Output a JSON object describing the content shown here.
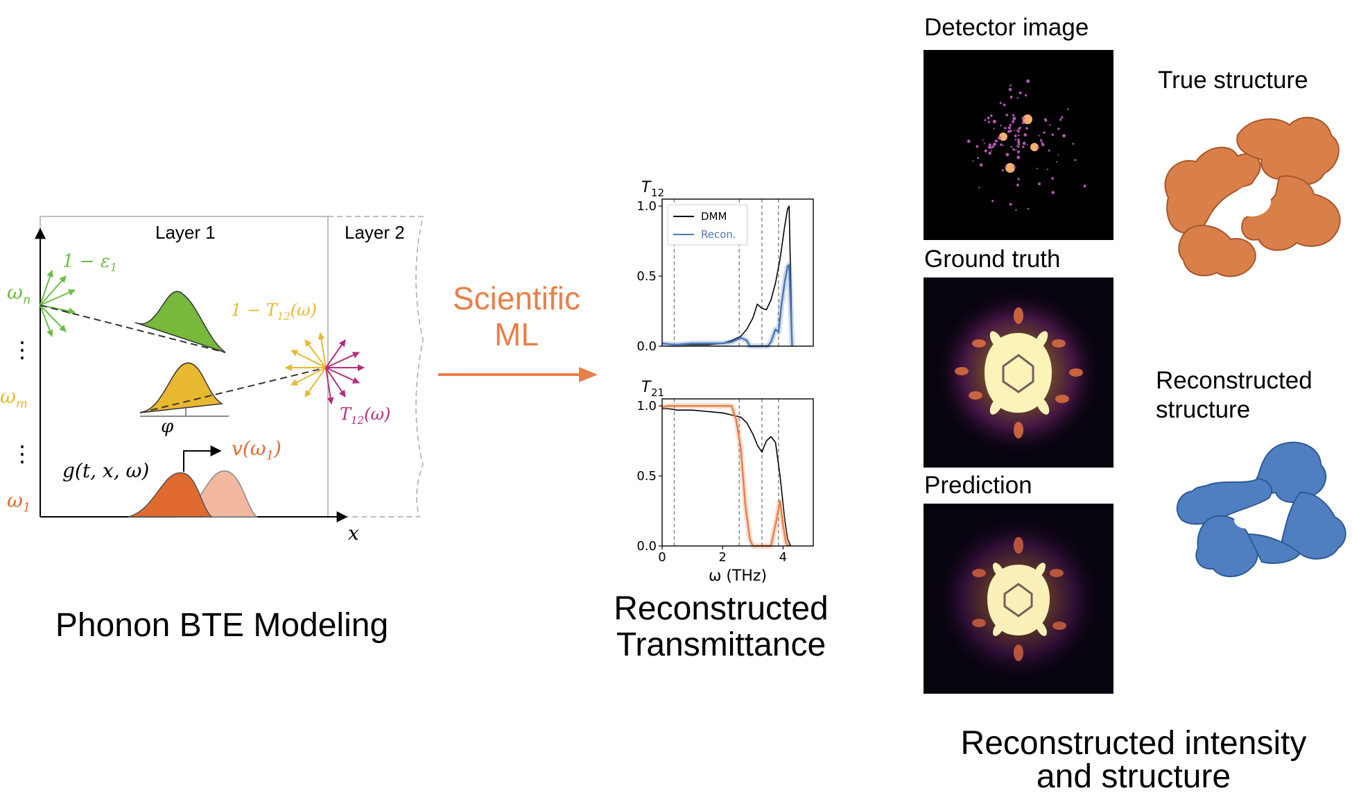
{
  "bte": {
    "layer1_label": "Layer 1",
    "layer2_label": "Layer 2",
    "eps_label": "1 − ε",
    "eps_sub": "1",
    "omega_n_label": "ω",
    "omega_n_sub": "n",
    "omega_m_label": "ω",
    "omega_m_sub": "m",
    "omega_1_label": "ω",
    "omega_1_sub": "1",
    "vdots": "⋮",
    "one_minus_T_label": "1 − T",
    "one_minus_T_sub": "12",
    "one_minus_T_arg": "(ω)",
    "T_label": "T",
    "T_sub": "12",
    "T_arg": "(ω)",
    "phi_label": "φ",
    "v_label": "v(ω",
    "v_sub": "1",
    "v_close": ")",
    "g_label": "g(t, x, ω)",
    "x_label": "x",
    "caption": "Phonon BTE Modeling"
  },
  "arrow_label": {
    "line1": "Scientific",
    "line2": "ML"
  },
  "colors": {
    "accent_orange": "#E8804A",
    "green": "#6DBE45",
    "yellow": "#E8B830",
    "magenta": "#B52C7A",
    "orange_dark": "#E06A30",
    "orange_light": "#F2B9A0",
    "dmm_line": "#000000",
    "recon_line": "#4A78B8",
    "recon_orange": "#E8804A"
  },
  "chart_data": [
    {
      "type": "line",
      "title": "T12",
      "title_main": "T",
      "title_sub": "12",
      "xlim": [
        0,
        5
      ],
      "ylim": [
        0,
        1.05
      ],
      "yticks": [
        "0.0",
        "0.5",
        "1.0"
      ],
      "xticks": [],
      "vlines": [
        0.4,
        2.55,
        3.3,
        3.85
      ],
      "legend": [
        "DMM",
        "Recon."
      ],
      "legend_placement": "top-left",
      "series": [
        {
          "name": "DMM",
          "x": [
            0,
            0.4,
            1.0,
            1.5,
            2.0,
            2.3,
            2.6,
            2.8,
            3.0,
            3.15,
            3.3,
            3.45,
            3.6,
            3.75,
            3.9,
            4.05,
            4.15,
            4.2,
            4.25,
            4.3
          ],
          "y": [
            0.02,
            0.01,
            0.01,
            0.01,
            0.02,
            0.04,
            0.07,
            0.12,
            0.2,
            0.3,
            0.27,
            0.26,
            0.33,
            0.45,
            0.62,
            0.85,
            0.98,
            1.0,
            0.5,
            0.0
          ]
        },
        {
          "name": "Recon.",
          "x": [
            0,
            0.4,
            1.0,
            1.5,
            2.0,
            2.3,
            2.6,
            2.8,
            2.9,
            3.0,
            3.3,
            3.5,
            3.6,
            3.75,
            3.85,
            3.95,
            4.05,
            4.15,
            4.2,
            4.25,
            4.3
          ],
          "y": [
            0.02,
            0.01,
            0.02,
            0.02,
            0.02,
            0.03,
            0.06,
            0.04,
            0.0,
            0.0,
            0.0,
            0.0,
            0.03,
            0.12,
            0.1,
            0.3,
            0.45,
            0.57,
            0.58,
            0.3,
            0.0
          ]
        }
      ]
    },
    {
      "type": "line",
      "title": "T21",
      "title_main": "T",
      "title_sub": "21",
      "xlim": [
        0,
        5
      ],
      "ylim": [
        0,
        1.05
      ],
      "yticks": [
        "0.0",
        "0.5",
        "1.0"
      ],
      "xticks": [
        "0",
        "2",
        "4"
      ],
      "xlabel": "ω (THz)",
      "vlines": [
        0.4,
        2.55,
        3.3,
        3.85
      ],
      "series": [
        {
          "name": "DMM",
          "x": [
            0,
            0.2,
            0.5,
            1.0,
            1.5,
            2.0,
            2.4,
            2.6,
            2.8,
            3.0,
            3.15,
            3.3,
            3.45,
            3.6,
            3.75,
            3.9,
            4.05,
            4.15,
            4.25
          ],
          "y": [
            0.98,
            0.98,
            0.97,
            0.97,
            0.96,
            0.95,
            0.93,
            0.92,
            0.88,
            0.8,
            0.72,
            0.67,
            0.75,
            0.78,
            0.74,
            0.5,
            0.2,
            0.05,
            0.0
          ]
        },
        {
          "name": "Recon.",
          "x": [
            0,
            0.2,
            0.5,
            1.0,
            1.5,
            2.0,
            2.3,
            2.45,
            2.6,
            2.75,
            2.9,
            3.0,
            3.3,
            3.6,
            3.75,
            3.9,
            4.0,
            4.1,
            4.2
          ],
          "y": [
            0.99,
            1.0,
            1.0,
            1.0,
            1.0,
            1.0,
            1.0,
            0.9,
            0.7,
            0.3,
            0.05,
            0.0,
            0.0,
            0.0,
            0.15,
            0.32,
            0.15,
            0.02,
            0.0
          ]
        }
      ]
    }
  ],
  "transmittance_caption": {
    "line1": "Reconstructed",
    "line2": "Transmittance"
  },
  "intensity": {
    "detector_label": "Detector image",
    "ground_truth_label": "Ground truth",
    "prediction_label": "Prediction",
    "true_structure_label": "True structure",
    "recon_structure_line1": "Reconstructed",
    "recon_structure_line2": "structure",
    "caption_line1": "Reconstructed intensity",
    "caption_line2": "and structure"
  }
}
